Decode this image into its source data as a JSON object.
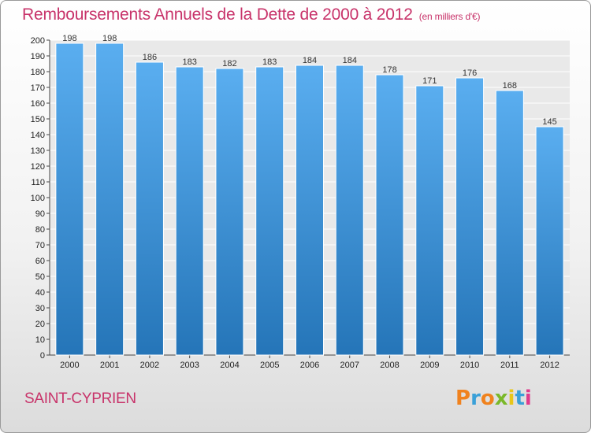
{
  "title": "Remboursements Annuels de la Dette de 2000 à 2012",
  "subtitle": "(en milliers d'€)",
  "city": "SAINT-CYPRIEN",
  "logo": {
    "text": "Proxiti",
    "colors": [
      "#f0821e",
      "#3aa0d8",
      "#f0821e",
      "#7ab829",
      "#e8c619",
      "#3aa0d8",
      "#e03a8c"
    ]
  },
  "chart_data": {
    "type": "bar",
    "title": "Remboursements Annuels de la Dette de 2000 à 2012",
    "subtitle": "(en milliers d'€)",
    "categories": [
      "2000",
      "2001",
      "2002",
      "2003",
      "2004",
      "2005",
      "2006",
      "2007",
      "2008",
      "2009",
      "2010",
      "2011",
      "2012"
    ],
    "values": [
      198,
      198,
      186,
      183,
      182,
      183,
      184,
      184,
      178,
      171,
      176,
      168,
      145
    ],
    "ylim": [
      0,
      200
    ],
    "yticks": [
      0,
      10,
      20,
      30,
      40,
      50,
      60,
      70,
      80,
      90,
      100,
      110,
      120,
      130,
      140,
      150,
      160,
      170,
      180,
      190,
      200
    ],
    "grid": true,
    "bar_color_top": "#5aaef0",
    "bar_color_bottom": "#2575b8"
  }
}
